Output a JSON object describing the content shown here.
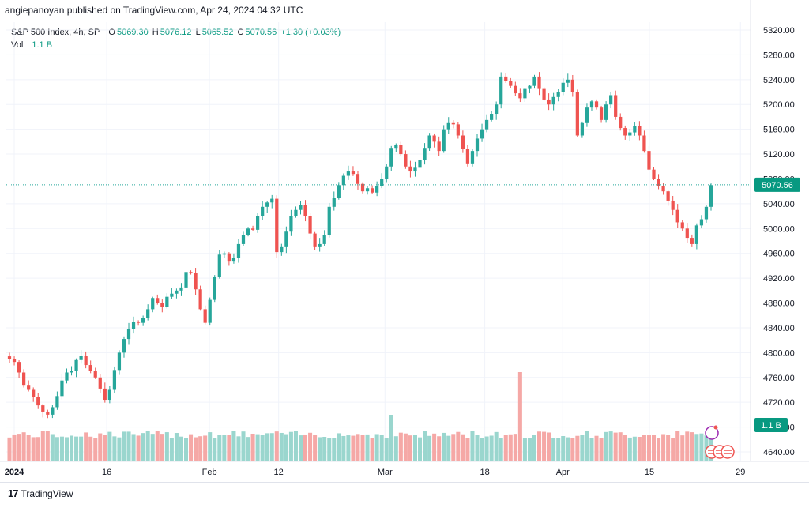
{
  "header": {
    "published_text": "angiepanoyan published on TradingView.com, Apr 24, 2024 04:32 UTC"
  },
  "legend": {
    "symbol": "S&P 500 Index, 4h, SP",
    "o_label": "O",
    "o_value": "5069.30",
    "h_label": "H",
    "h_value": "5076.12",
    "l_label": "L",
    "l_value": "5065.52",
    "c_label": "C",
    "c_value": "5070.56",
    "change": "+1.30 (+0.03%)",
    "vol_label": "Vol",
    "vol_value": "1.1 B"
  },
  "footer": {
    "logo_glyph": "17",
    "brand": "TradingView"
  },
  "colors": {
    "up": "#26a69a",
    "down": "#ef5350",
    "vol_up": "#9ad6ce",
    "vol_down": "#f5a8a6",
    "grid": "#f0f3fa",
    "last_price_bg": "#089981"
  },
  "chart_data": {
    "type": "candlestick",
    "title": "S&P 500 Index, 4h, SP",
    "ylim": [
      4620,
      5330
    ],
    "y_ticks": [
      "5320.00",
      "5280.00",
      "5240.00",
      "5200.00",
      "5160.00",
      "5120.00",
      "5080.00",
      "5040.00",
      "5000.00",
      "4960.00",
      "4920.00",
      "4880.00",
      "4840.00",
      "4800.00",
      "4760.00",
      "4720.00",
      "4680.00",
      "4640.00"
    ],
    "x_ticks": [
      {
        "label": "2024",
        "pos": 0,
        "bold": true
      },
      {
        "label": "16",
        "pos": 0.127
      },
      {
        "label": "Feb",
        "pos": 0.268
      },
      {
        "label": "12",
        "pos": 0.363
      },
      {
        "label": "Mar",
        "pos": 0.509
      },
      {
        "label": "18",
        "pos": 0.646
      },
      {
        "label": "Apr",
        "pos": 0.753
      },
      {
        "label": "15",
        "pos": 0.872
      },
      {
        "label": "29",
        "pos": 0.997
      }
    ],
    "last_price": "5070.56",
    "volume_label": "1.1 B",
    "closes": [
      4790,
      4785,
      4768,
      4748,
      4740,
      4728,
      4715,
      4705,
      4700,
      4712,
      4730,
      4755,
      4768,
      4770,
      4788,
      4795,
      4780,
      4770,
      4760,
      4742,
      4724,
      4740,
      4772,
      4800,
      4822,
      4838,
      4850,
      4848,
      4856,
      4870,
      4888,
      4880,
      4874,
      4890,
      4895,
      4900,
      4905,
      4930,
      4928,
      4902,
      4870,
      4848,
      4885,
      4922,
      4958,
      4960,
      4948,
      4952,
      4975,
      4990,
      5000,
      4998,
      5020,
      5035,
      5042,
      5048,
      4962,
      4970,
      4995,
      5020,
      5030,
      5038,
      5020,
      4992,
      4970,
      4975,
      4990,
      5035,
      5050,
      5070,
      5085,
      5092,
      5088,
      5072,
      5060,
      5065,
      5058,
      5068,
      5080,
      5100,
      5130,
      5135,
      5120,
      5100,
      5092,
      5098,
      5110,
      5130,
      5150,
      5140,
      5125,
      5160,
      5170,
      5168,
      5150,
      5128,
      5105,
      5125,
      5145,
      5160,
      5175,
      5185,
      5200,
      5245,
      5238,
      5230,
      5218,
      5210,
      5225,
      5230,
      5245,
      5225,
      5208,
      5200,
      5212,
      5220,
      5235,
      5240,
      5220,
      5150,
      5170,
      5195,
      5205,
      5195,
      5175,
      5200,
      5215,
      5180,
      5162,
      5150,
      5155,
      5165,
      5150,
      5125,
      5095,
      5080,
      5068,
      5060,
      5045,
      5030,
      5010,
      5000,
      4985,
      4975,
      5005,
      5015,
      5035,
      5070
    ]
  }
}
